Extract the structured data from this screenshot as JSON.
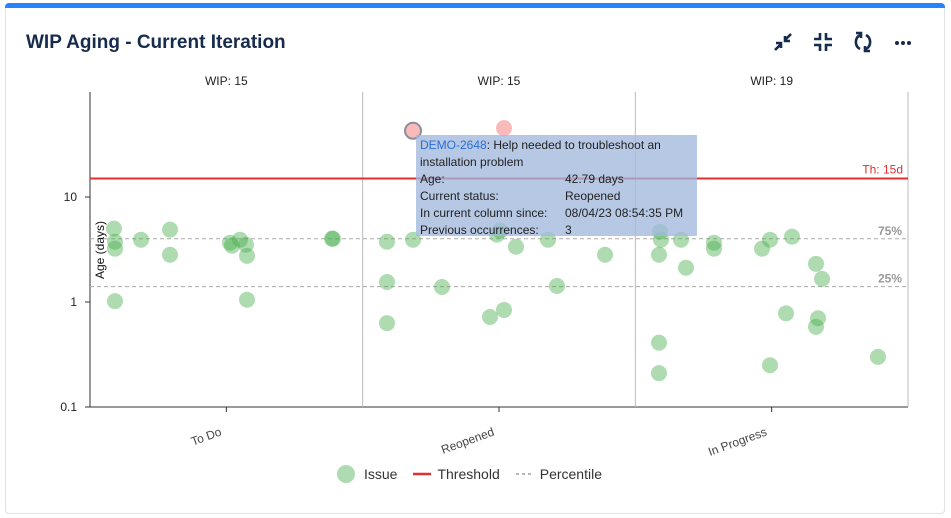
{
  "header": {
    "title": "WIP Aging - Current Iteration",
    "icons": [
      "minimize-icon",
      "collapse-icon",
      "refresh-icon",
      "more-icon"
    ]
  },
  "colors": {
    "accent": "#2684ff",
    "issue": "#4caf50",
    "over_threshold": "#ef5350",
    "threshold": "#e03030",
    "percentile": "#9e9e9e"
  },
  "chart_data": {
    "type": "scatter",
    "ylabel": "Age (days)",
    "yscale": "log",
    "ylim": [
      0.1,
      100
    ],
    "yticks": [
      "10",
      "1",
      "0.1"
    ],
    "categories": [
      "To Do",
      "Reopened",
      "In Progress"
    ],
    "wip_labels": [
      "WIP: 15",
      "WIP: 15",
      "WIP: 19"
    ],
    "threshold": {
      "value": 15,
      "label": "Th: 15d"
    },
    "percentiles": [
      {
        "value": 4,
        "label": "75%"
      },
      {
        "value": 1.4,
        "label": "25%"
      }
    ],
    "legend": {
      "issue": "Issue",
      "threshold": "Threshold",
      "percentile": "Percentile",
      "position": "bottom"
    },
    "points": {
      "To Do": [
        5.0,
        3.75,
        3.22,
        1.02,
        3.92,
        4.89,
        2.82,
        3.67,
        3.44,
        3.92,
        3.51,
        2.75,
        1.05,
        4.01,
        4.01
      ],
      "Reopened": [
        42.79,
        45.3,
        3.75,
        3.92,
        1.55,
        0.63,
        1.39,
        0.72,
        0.84,
        3.36,
        3.92,
        1.42,
        2.82,
        4.78,
        4.38
      ],
      "In Progress": [
        4.67,
        3.92,
        2.82,
        3.92,
        2.12,
        3.67,
        3.22,
        0.41,
        0.21,
        3.22,
        3.92,
        4.19,
        0.78,
        0.25,
        2.31,
        1.66,
        0.7,
        0.58,
        0.3
      ]
    }
  },
  "tooltip": {
    "key": "DEMO-2648",
    "summary": ": Help needed to troubleshoot an installation problem",
    "rows": [
      {
        "k": "Age:",
        "v": "42.79 days"
      },
      {
        "k": "Current status:",
        "v": "Reopened"
      },
      {
        "k": "In current column since:",
        "v": "08/04/23 08:54:35 PM"
      },
      {
        "k": "Previous occurrences:",
        "v": "3"
      }
    ]
  }
}
